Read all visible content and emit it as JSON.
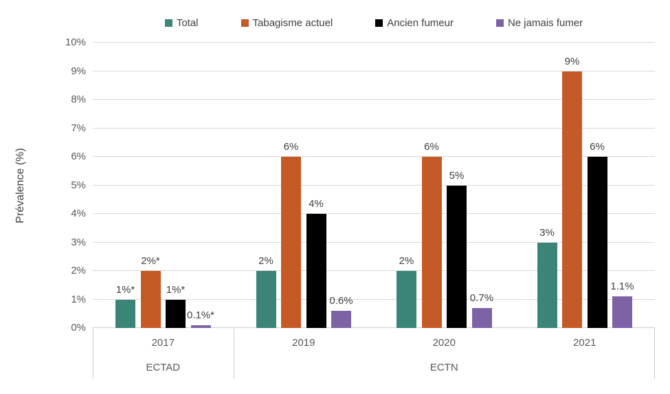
{
  "chart_data": {
    "type": "bar",
    "title": "",
    "ylabel": "Prévalence (%)",
    "xlabel": "",
    "ylim": [
      0,
      10
    ],
    "ytick_step": 1,
    "ytick_suffix": "%",
    "grid": true,
    "legend_position": "top",
    "categories": [
      "2017",
      "2019",
      "2020",
      "2021"
    ],
    "category_groups": [
      {
        "label": "ECTAD",
        "from": 0,
        "to": 0
      },
      {
        "label": "ECTN",
        "from": 1,
        "to": 3
      }
    ],
    "series": [
      {
        "name": "Total",
        "color": "#3A8577",
        "values": [
          1,
          2,
          2,
          3
        ],
        "labels": [
          "1%*",
          "2%",
          "2%",
          "3%"
        ]
      },
      {
        "name": "Tabagisme actuel",
        "color": "#C55A27",
        "values": [
          2,
          6,
          6,
          9
        ],
        "labels": [
          "2%*",
          "6%",
          "6%",
          "9%"
        ]
      },
      {
        "name": "Ancien fumeur",
        "color": "#000000",
        "values": [
          1,
          4,
          5,
          6
        ],
        "labels": [
          "1%*",
          "4%",
          "5%",
          "6%"
        ]
      },
      {
        "name": "Ne jamais fumer",
        "color": "#7D63A6",
        "values": [
          0.1,
          0.6,
          0.7,
          1.1
        ],
        "labels": [
          "0.1%*",
          "0.6%",
          "0.7%",
          "1.1%"
        ]
      }
    ],
    "colors": {
      "grid": "#D9D9D9",
      "axis_line": "#D0CECE",
      "tick_text": "#595959",
      "label_text": "#404040"
    }
  }
}
